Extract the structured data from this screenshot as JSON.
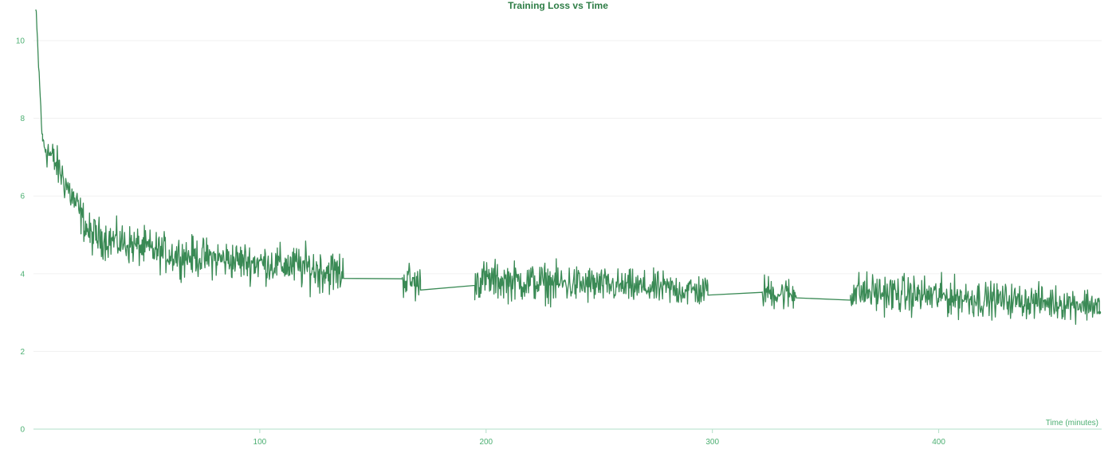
{
  "chart_data": {
    "type": "line",
    "title": "Training Loss vs Time",
    "xlabel": "Time (minutes)",
    "ylabel": "",
    "xlim": [
      0,
      472
    ],
    "ylim": [
      0,
      10.8
    ],
    "x_ticks": [
      100,
      200,
      300,
      400
    ],
    "y_ticks": [
      0,
      2,
      4,
      6,
      8,
      10
    ],
    "grid": true,
    "legend": "none",
    "colors": {
      "line": "#3a8a55",
      "text": "#4caf72",
      "title": "#2e7d46",
      "grid": "#f0f0f0",
      "axis": "#b2dfc8"
    },
    "series": [
      {
        "segments": [
          {
            "x_start": 1,
            "x_end": 4,
            "trend": [
              10.8,
              7.4
            ],
            "noise": 0.2
          },
          {
            "x_start": 4,
            "x_end": 12,
            "trend": [
              7.4,
              6.6
            ],
            "noise": 0.35
          },
          {
            "x_start": 12,
            "x_end": 25,
            "trend": [
              6.6,
              5.0
            ],
            "noise": 0.35
          },
          {
            "x_start": 25,
            "x_end": 60,
            "trend": [
              5.0,
              4.5
            ],
            "noise": 0.35
          },
          {
            "x_start": 60,
            "x_end": 115,
            "trend": [
              4.5,
              4.2
            ],
            "noise": 0.35
          },
          {
            "x_start": 115,
            "x_end": 137,
            "trend": [
              4.2,
              4.0
            ],
            "noise": 0.4
          },
          {
            "x_start": 137,
            "x_end": 163,
            "trend": [
              3.88,
              3.87
            ],
            "noise": 0.0
          },
          {
            "x_start": 163,
            "x_end": 171,
            "trend": [
              3.9,
              3.7
            ],
            "noise": 0.35
          },
          {
            "x_start": 171,
            "x_end": 195,
            "trend": [
              3.58,
              3.7
            ],
            "noise": 0.0
          },
          {
            "x_start": 195,
            "x_end": 250,
            "trend": [
              3.85,
              3.7
            ],
            "noise": 0.35
          },
          {
            "x_start": 250,
            "x_end": 298,
            "trend": [
              3.7,
              3.55
            ],
            "noise": 0.3
          },
          {
            "x_start": 298,
            "x_end": 322,
            "trend": [
              3.45,
              3.52
            ],
            "noise": 0.0
          },
          {
            "x_start": 322,
            "x_end": 337,
            "trend": [
              3.55,
              3.45
            ],
            "noise": 0.3
          },
          {
            "x_start": 337,
            "x_end": 361,
            "trend": [
              3.38,
              3.32
            ],
            "noise": 0.0
          },
          {
            "x_start": 361,
            "x_end": 420,
            "trend": [
              3.55,
              3.35
            ],
            "noise": 0.35
          },
          {
            "x_start": 420,
            "x_end": 471,
            "trend": [
              3.35,
              3.2
            ],
            "noise": 0.3
          }
        ],
        "final_point": {
          "x": 471,
          "y": 3.0
        }
      }
    ]
  }
}
